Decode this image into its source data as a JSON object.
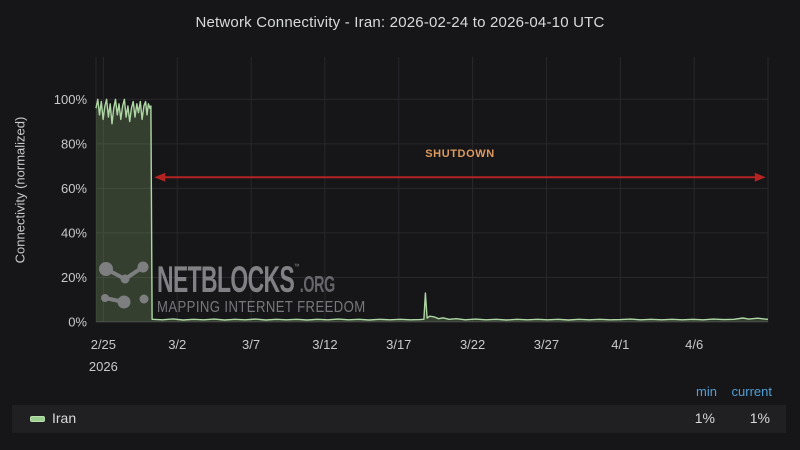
{
  "panel": {
    "title": "Network Connectivity - Iran: 2026-02-24 to 2026-04-10 UTC"
  },
  "chart_data": {
    "type": "area",
    "title": "Network Connectivity - Iran: 2026-02-24 to 2026-04-10 UTC",
    "xlabel": "",
    "ylabel": "Connectivity (normalized)",
    "x_range": [
      "2026-02-24",
      "2026-04-10"
    ],
    "x_unit": "days since 2026-02-24 00:00 UTC",
    "ylim": [
      0,
      119
    ],
    "grid": true,
    "legend_position": "bottom",
    "y_ticks": [
      {
        "value": 0,
        "label": "0%"
      },
      {
        "value": 20,
        "label": "20%"
      },
      {
        "value": 40,
        "label": "40%"
      },
      {
        "value": 60,
        "label": "60%"
      },
      {
        "value": 80,
        "label": "80%"
      },
      {
        "value": 100,
        "label": "100%"
      }
    ],
    "x_ticks": [
      {
        "day": 1,
        "label": "2/25"
      },
      {
        "day": 6,
        "label": "3/2"
      },
      {
        "day": 11,
        "label": "3/7"
      },
      {
        "day": 16,
        "label": "3/12"
      },
      {
        "day": 21,
        "label": "3/17"
      },
      {
        "day": 26,
        "label": "3/22"
      },
      {
        "day": 31,
        "label": "3/27"
      },
      {
        "day": 36,
        "label": "4/1"
      },
      {
        "day": 41,
        "label": "4/6"
      }
    ],
    "x_year_label": "2026",
    "series": [
      {
        "name": "Iran",
        "color": "#aed6a4",
        "fill": "rgba(140,180,115,0.26)",
        "min": "1%",
        "current": "1%",
        "points": [
          [
            0.5,
            96
          ],
          [
            0.62,
            100
          ],
          [
            0.74,
            93
          ],
          [
            0.86,
            99
          ],
          [
            0.98,
            91
          ],
          [
            1.1,
            97
          ],
          [
            1.22,
            100
          ],
          [
            1.34,
            92
          ],
          [
            1.46,
            98
          ],
          [
            1.58,
            89
          ],
          [
            1.7,
            96
          ],
          [
            1.82,
            100
          ],
          [
            1.94,
            93
          ],
          [
            2.06,
            98
          ],
          [
            2.18,
            91
          ],
          [
            2.3,
            97
          ],
          [
            2.42,
            100
          ],
          [
            2.54,
            92
          ],
          [
            2.66,
            97
          ],
          [
            2.78,
            90
          ],
          [
            2.9,
            96
          ],
          [
            3.02,
            99
          ],
          [
            3.14,
            92
          ],
          [
            3.26,
            98
          ],
          [
            3.38,
            94
          ],
          [
            3.5,
            99
          ],
          [
            3.62,
            91
          ],
          [
            3.74,
            97
          ],
          [
            3.86,
            99
          ],
          [
            3.95,
            93
          ],
          [
            4.05,
            98
          ],
          [
            4.15,
            96
          ],
          [
            4.22,
            97
          ],
          [
            4.3,
            1.2
          ],
          [
            5,
            1
          ],
          [
            5.7,
            1.4
          ],
          [
            6.4,
            0.9
          ],
          [
            7.1,
            1.2
          ],
          [
            7.8,
            1
          ],
          [
            8.5,
            1.3
          ],
          [
            9.2,
            0.9
          ],
          [
            9.9,
            1.2
          ],
          [
            10.6,
            1
          ],
          [
            11.3,
            1.3
          ],
          [
            12,
            0.9
          ],
          [
            12.7,
            1.2
          ],
          [
            13.4,
            1
          ],
          [
            14.1,
            1.2
          ],
          [
            14.8,
            0.9
          ],
          [
            15.5,
            1.2
          ],
          [
            16.2,
            1
          ],
          [
            16.9,
            1.3
          ],
          [
            17.6,
            1
          ],
          [
            18.3,
            1.2
          ],
          [
            19,
            0.9
          ],
          [
            19.7,
            1.2
          ],
          [
            20.4,
            1
          ],
          [
            21.1,
            1.2
          ],
          [
            21.8,
            1
          ],
          [
            22.4,
            1.1
          ],
          [
            22.7,
            1.2
          ],
          [
            22.8,
            13
          ],
          [
            22.92,
            1.8
          ],
          [
            23.1,
            2.6
          ],
          [
            23.4,
            2.3
          ],
          [
            23.7,
            1.5
          ],
          [
            24,
            1.9
          ],
          [
            24.4,
            1.2
          ],
          [
            24.9,
            1.5
          ],
          [
            25.5,
            1
          ],
          [
            26.2,
            1.3
          ],
          [
            26.9,
            1
          ],
          [
            27.6,
            1.2
          ],
          [
            28.3,
            0.9
          ],
          [
            29,
            1.2
          ],
          [
            29.7,
            1
          ],
          [
            30.4,
            1.2
          ],
          [
            31.1,
            1
          ],
          [
            31.8,
            1.2
          ],
          [
            32.5,
            0.9
          ],
          [
            33.2,
            1.2
          ],
          [
            33.9,
            1
          ],
          [
            34.6,
            1.2
          ],
          [
            35.3,
            1
          ],
          [
            36,
            1.1
          ],
          [
            36.7,
            1.3
          ],
          [
            37.4,
            1
          ],
          [
            38.1,
            1.2
          ],
          [
            38.8,
            1
          ],
          [
            39.5,
            1.2
          ],
          [
            40.2,
            1
          ],
          [
            40.9,
            1.2
          ],
          [
            41.6,
            1
          ],
          [
            42.3,
            1.3
          ],
          [
            43,
            1.1
          ],
          [
            43.7,
            1.2
          ],
          [
            44.3,
            1.8
          ],
          [
            44.7,
            1.3
          ],
          [
            45.3,
            1.7
          ],
          [
            45.8,
            1.3
          ],
          [
            46,
            1.2
          ]
        ]
      }
    ],
    "annotation": {
      "label": "SHUTDOWN",
      "start_day": 4.45,
      "end_day": 45.85,
      "y_value": 65,
      "label_color": "#dd9a5f",
      "arrow_color": "#b42222"
    }
  },
  "legend": {
    "columns": [
      "min",
      "current"
    ],
    "rows": [
      {
        "name": "Iran",
        "min": "1%",
        "current": "1%"
      }
    ]
  },
  "watermark": {
    "brand": "NETBLOCKS",
    "tm": "TM",
    "domain": ".ORG",
    "tagline": "MAPPING INTERNET FREEDOM"
  },
  "colors": {
    "background": "#161618",
    "grid": "#28282c",
    "axis_line": "#3a3a3e",
    "tick_text": "#c9c9cb",
    "title_text": "#d9dadb",
    "legend_header": "#4f9fd8",
    "legend_bg": "#202023",
    "value_text": "#d8d9da",
    "watermark": "#87878c"
  }
}
